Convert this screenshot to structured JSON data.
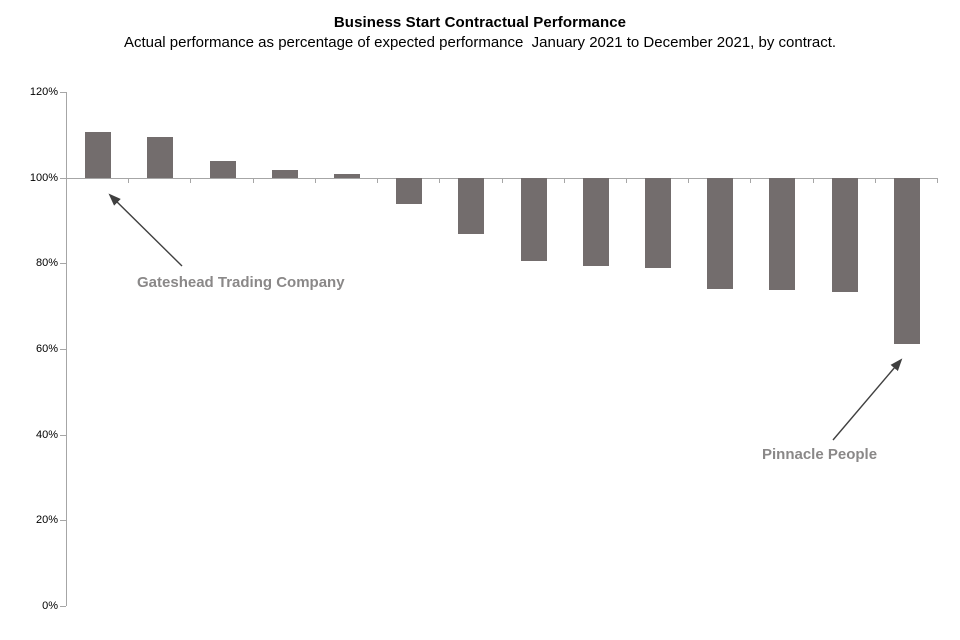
{
  "title": "Business Start Contractual Performance",
  "subtitle": "Actual performance as percentage of expected performance  January 2021 to December 2021, by contract.",
  "colors": {
    "bar": "#736d6d",
    "axis": "#a6a6a6",
    "annotation": "#8a8888",
    "arrow": "#404040"
  },
  "chart_data": {
    "type": "bar",
    "title": "Business Start Contractual Performance",
    "subtitle": "Actual performance as percentage of expected performance January 2021 to December 2021, by contract.",
    "unit": "percent",
    "baseline": 100,
    "ylim": [
      0,
      120
    ],
    "yticks": [
      "120%",
      "100%",
      "80%",
      "60%",
      "40%",
      "20%",
      "0%"
    ],
    "ytick_values": [
      120,
      100,
      80,
      60,
      40,
      20,
      0
    ],
    "grid": "off",
    "legend": "none",
    "categories": [
      "",
      "",
      "",
      "",
      "",
      "",
      "",
      "",
      "",
      "",
      "",
      "",
      "",
      ""
    ],
    "values": [
      110.6,
      109.5,
      103.8,
      101.9,
      100.8,
      93.9,
      86.9,
      80.5,
      79.4,
      78.9,
      73.9,
      73.7,
      73.2,
      61.2
    ],
    "annotations": [
      {
        "label": "Gateshead Trading Company",
        "bar_index": 0,
        "bar_value": 110.6
      },
      {
        "label": "Pinnacle People",
        "bar_index": 13,
        "bar_value": 61.2
      }
    ]
  }
}
